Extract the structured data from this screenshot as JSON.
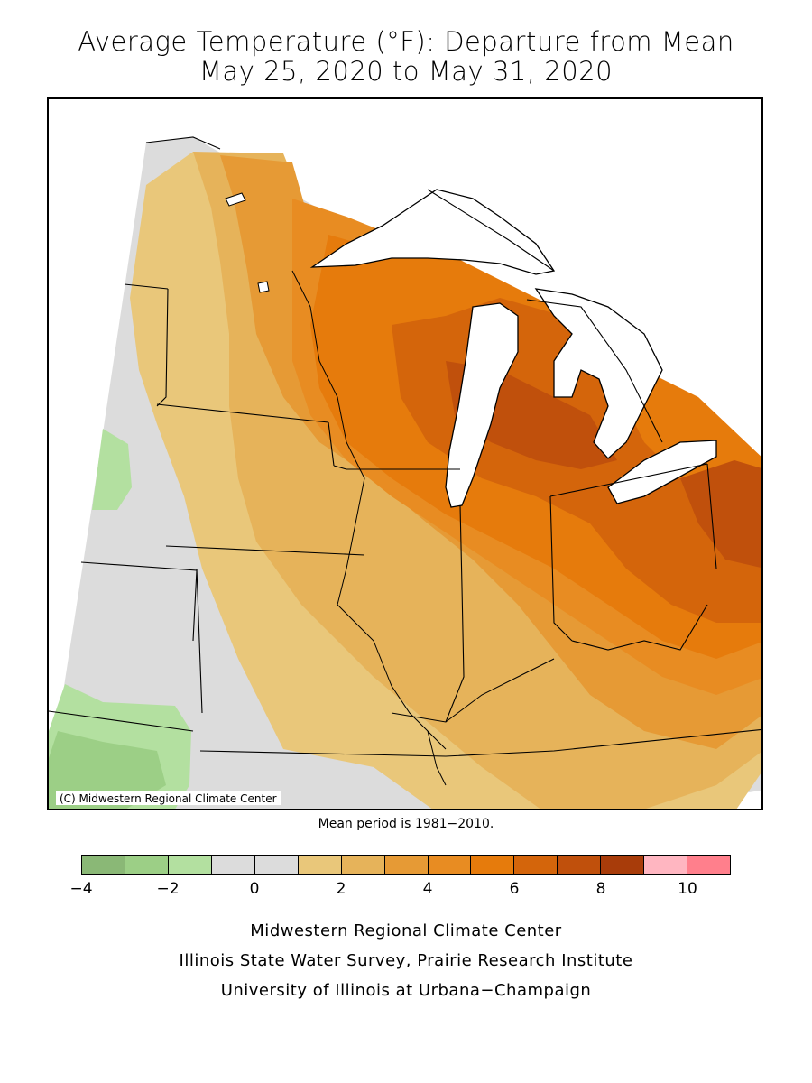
{
  "title": {
    "line1": "Average Temperature (°F): Departure from Mean",
    "line2": "May 25, 2020 to May 31, 2020"
  },
  "map": {
    "copyright": "(C) Midwestern Regional Climate Center",
    "colors": {
      "water": "#ffffff",
      "near_normal": "#dcdcdc",
      "light_green": "#b3e0a0",
      "mid_green": "#9ccf86",
      "dark_green": "#8ab876",
      "tan": "#e9c77a",
      "light_orange": "#e6b35a",
      "orange": "#e69a35",
      "mid_orange": "#e88c22",
      "deep_orange": "#e67b0c",
      "burnt_orange": "#d4650b",
      "rust": "#c0500c"
    }
  },
  "mean_period": "Mean period is 1981−2010.",
  "legend": {
    "colors": [
      "#8ab876",
      "#9ccf86",
      "#b3e0a0",
      "#dcdcdc",
      "#dcdcdc",
      "#e9c77a",
      "#e6b35a",
      "#e69a35",
      "#e88c22",
      "#e67b0c",
      "#d4650b",
      "#c0500c",
      "#a83c0a",
      "#ffb6c1",
      "#ff7f8c"
    ],
    "ticks": [
      "−4",
      "−2",
      "0",
      "2",
      "4",
      "6",
      "8",
      "10"
    ]
  },
  "credits": {
    "line1": "Midwestern Regional Climate Center",
    "line2": "Illinois State Water Survey, Prairie Research Institute",
    "line3": "University of Illinois at Urbana−Champaign"
  }
}
